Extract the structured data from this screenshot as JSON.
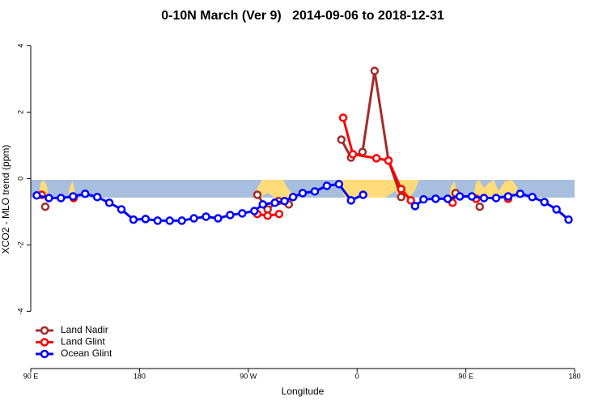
{
  "chart_data": {
    "type": "line",
    "title": "0-10N March (Ver 9)   2014-09-06 to 2018-12-31",
    "x_label": "Longitude",
    "y_label": "XCO2 - MLO trend (ppm)",
    "xlim": [
      90,
      540
    ],
    "ylim": [
      -5.7,
      4.4
    ],
    "xticks": [
      {
        "value": 90,
        "label": "90 E"
      },
      180,
      {
        "value": 270,
        "label": "90 W"
      },
      {
        "value": 360,
        "label": "0"
      },
      {
        "value": 450,
        "label": "90 E"
      },
      180.0
    ],
    "yticks": [
      4,
      2,
      0,
      -2,
      -4
    ],
    "legend": "bottom-left",
    "series": [
      {
        "name": "Land Nadir",
        "color": "#a52a2a",
        "x": [
          102,
          null,
          277.5,
          286,
          295,
          303.5,
          null,
          347,
          355,
          364.5,
          374.5,
          386,
          396.5,
          null,
          441.5,
          null,
          461.5
        ],
        "values": [
          -0.85,
          null,
          -0.49,
          -0.93,
          -0.68,
          -0.78,
          null,
          1.17,
          0.63,
          0.8,
          3.24,
          0.54,
          -0.56,
          null,
          -0.44,
          null,
          -0.85
        ]
      },
      {
        "name": "Land Glint",
        "color": "#ff0000",
        "x": [
          99,
          null,
          125.5,
          null,
          277.5,
          286,
          295.5,
          null,
          348.5,
          356.5,
          376,
          386,
          396.5,
          404.5,
          null,
          439,
          null,
          458.5,
          null,
          485
        ],
        "values": [
          -0.49,
          null,
          -0.59,
          null,
          -1.07,
          -1.12,
          -1.07,
          null,
          1.83,
          0.73,
          0.61,
          0.54,
          -0.32,
          -0.66,
          null,
          -0.73,
          null,
          -0.61,
          null,
          -0.61
        ]
      },
      {
        "name": "Ocean Glint",
        "color": "#0000ff",
        "x": [
          95,
          105,
          115,
          125,
          135,
          145,
          155,
          165,
          175,
          185,
          195,
          205,
          215,
          225,
          235,
          245,
          255,
          265,
          275,
          282,
          292,
          300,
          307,
          315,
          325,
          335,
          345,
          355,
          365,
          null,
          408,
          415,
          425,
          435,
          445,
          455,
          465,
          475,
          485,
          495,
          505,
          515,
          525,
          535
        ],
        "values": [
          -0.51,
          -0.59,
          -0.59,
          -0.54,
          -0.46,
          -0.56,
          -0.73,
          -0.93,
          -1.24,
          -1.22,
          -1.27,
          -1.27,
          -1.27,
          -1.2,
          -1.15,
          -1.2,
          -1.1,
          -1.05,
          -0.98,
          -0.78,
          -0.73,
          -0.68,
          -0.56,
          -0.44,
          -0.39,
          -0.22,
          -0.17,
          -0.66,
          -0.49,
          null,
          -0.83,
          -0.63,
          -0.61,
          -0.61,
          -0.54,
          -0.54,
          -0.59,
          -0.59,
          -0.54,
          -0.46,
          -0.56,
          -0.71,
          -0.93,
          -1.24
        ]
      }
    ]
  }
}
